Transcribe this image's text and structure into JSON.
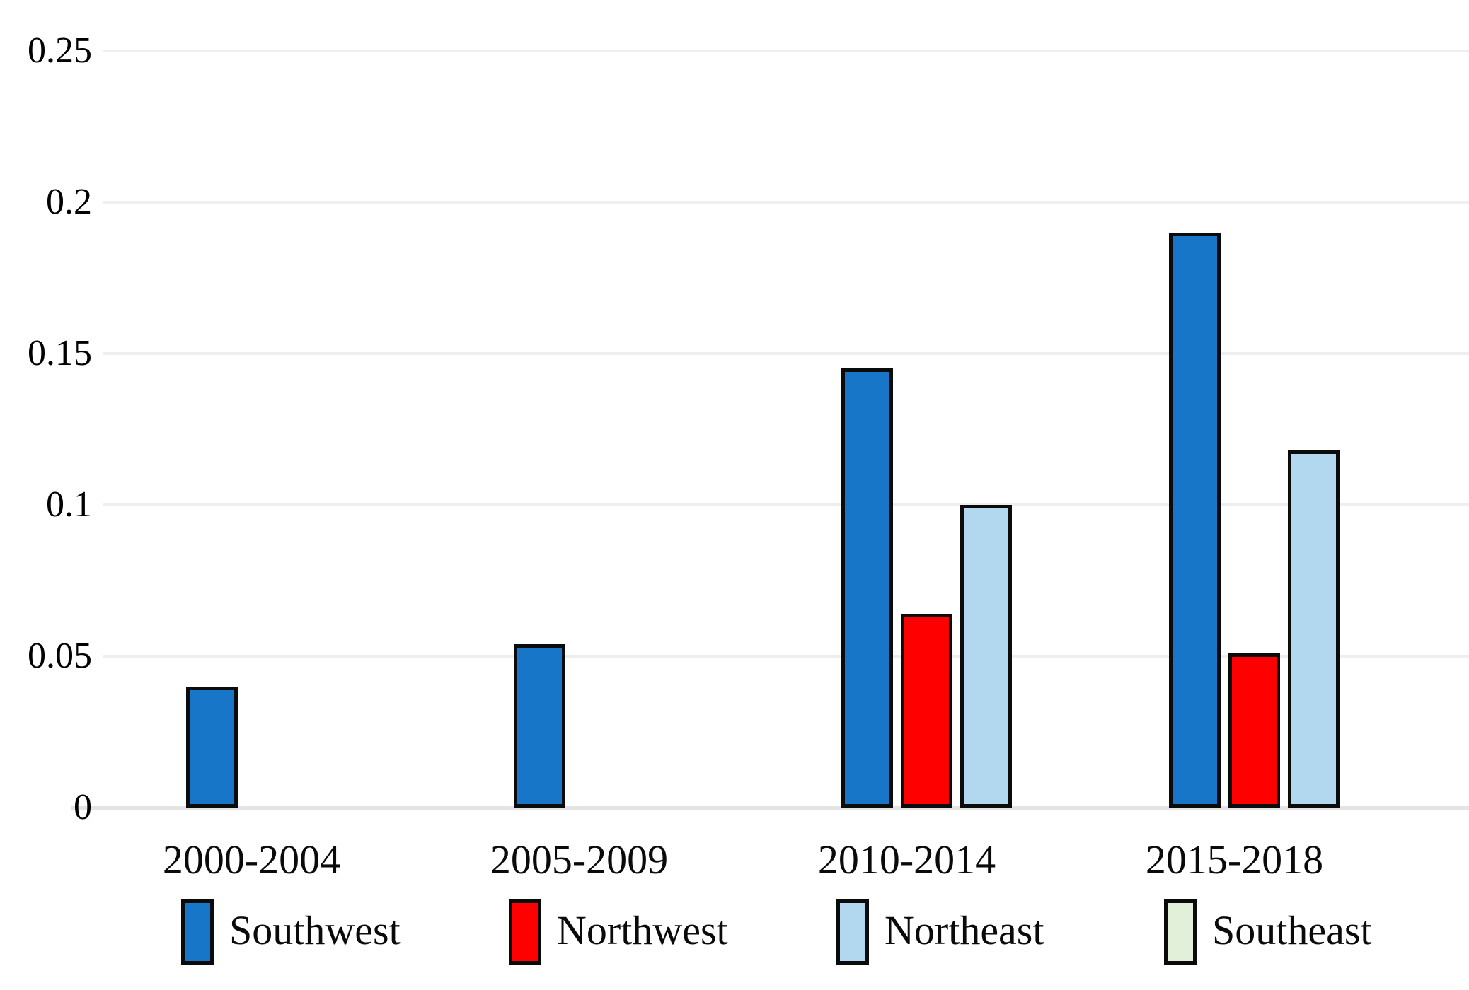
{
  "chart_data": {
    "type": "bar",
    "title": "",
    "xlabel": "",
    "ylabel": "",
    "categories": [
      "2000-2004",
      "2005-2009",
      "2010-2014",
      "2015-2018"
    ],
    "series": [
      {
        "name": "Southwest",
        "color": "#1776c8",
        "values": [
          0.04,
          0.054,
          0.145,
          0.19
        ]
      },
      {
        "name": "Northwest",
        "color": "#fe0000",
        "values": [
          0,
          0,
          0.064,
          0.051
        ]
      },
      {
        "name": "Northeast",
        "color": "#b2d8f0",
        "values": [
          0,
          0,
          0.1,
          0.118
        ]
      },
      {
        "name": "Southeast",
        "color": "#e2f0d9",
        "values": [
          0,
          0,
          0,
          0
        ]
      }
    ],
    "ylim": [
      0,
      0.25
    ],
    "yticks": [
      0,
      0.05,
      0.1,
      0.15,
      0.2,
      0.25
    ],
    "ytick_labels": [
      "0",
      "0.05",
      "0.1",
      "0.15",
      "0.2",
      "0.25"
    ],
    "grid": true,
    "bar_border_color": "#0b0b0b",
    "gridline_color": "#efefef",
    "legend_position": "bottom"
  }
}
